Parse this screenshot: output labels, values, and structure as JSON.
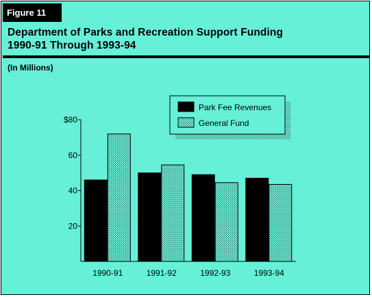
{
  "figure_label": "Figure 11",
  "title_line1": "Department of Parks and Recreation Support Funding",
  "title_line2": "1990-91 Through 1993-94",
  "units_note": "(In Millions)",
  "colors": {
    "background": "#66f0d8",
    "park_fee": "#000000",
    "general_fund_dots": "#6a7a72"
  },
  "chart_data": {
    "type": "bar",
    "title": "Department of Parks and Recreation Support Funding 1990-91 Through 1993-94",
    "subtitle": "(In Millions)",
    "categories": [
      "1990-91",
      "1991-92",
      "1992-93",
      "1993-94"
    ],
    "series": [
      {
        "name": "Park Fee Revenues",
        "values": [
          46,
          50,
          49,
          47
        ],
        "color": "#000000",
        "pattern": "solid"
      },
      {
        "name": "General Fund",
        "values": [
          72,
          54.5,
          44.5,
          43.5
        ],
        "color": "#6a7a72",
        "pattern": "dotted"
      }
    ],
    "ylim": [
      0,
      80
    ],
    "yticks": [
      20,
      40,
      60,
      80
    ],
    "ytick_labels": [
      "20",
      "40",
      "60",
      "$80"
    ],
    "grid": false,
    "legend_position": "top-right"
  }
}
